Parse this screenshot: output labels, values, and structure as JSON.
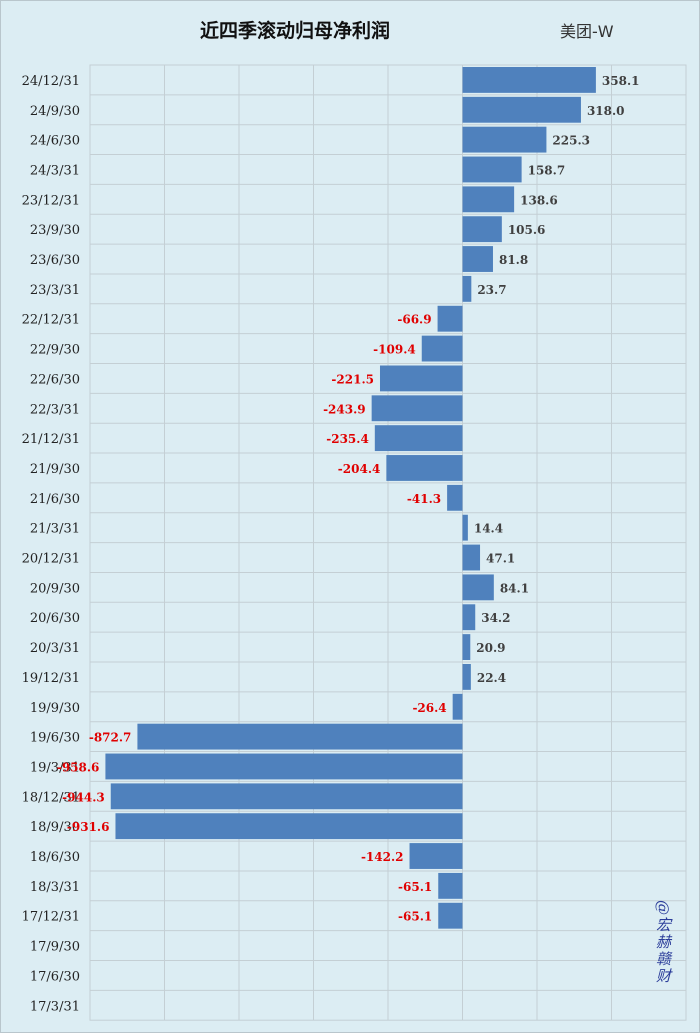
{
  "header": {
    "title": "近四季滚动归母净利润",
    "company": "美团-W"
  },
  "watermark": "@宏赫赣财",
  "chart_data": {
    "type": "bar",
    "orientation": "horizontal",
    "title": "近四季滚动归母净利润",
    "categories": [
      "24/12/31",
      "24/9/30",
      "24/6/30",
      "24/3/31",
      "23/12/31",
      "23/9/30",
      "23/6/30",
      "23/3/31",
      "22/12/31",
      "22/9/30",
      "22/6/30",
      "22/3/31",
      "21/12/31",
      "21/9/30",
      "21/6/30",
      "21/3/31",
      "20/12/31",
      "20/9/30",
      "20/6/30",
      "20/3/31",
      "19/12/31",
      "19/9/30",
      "19/6/30",
      "19/3/31",
      "18/12/31",
      "18/9/30",
      "18/6/30",
      "18/3/31",
      "17/12/31",
      "17/9/30",
      "17/6/30",
      "17/3/31"
    ],
    "values": [
      358.1,
      318.0,
      225.3,
      158.7,
      138.6,
      105.6,
      81.8,
      23.7,
      -66.9,
      -109.4,
      -221.5,
      -243.9,
      -235.4,
      -204.4,
      -41.3,
      14.4,
      47.1,
      84.1,
      34.2,
      20.9,
      22.4,
      -26.4,
      -872.7,
      -958.6,
      -944.3,
      -931.6,
      -142.2,
      -65.1,
      -65.1,
      null,
      null,
      null
    ],
    "labels": [
      "358.1",
      "318.0",
      "225.3",
      "158.7",
      "138.6",
      "105.6",
      "81.8",
      "23.7",
      "-66.9",
      "-109.4",
      "-221.5",
      "-243.9",
      "-235.4",
      "-204.4",
      "-41.3",
      "14.4",
      "47.1",
      "84.1",
      "34.2",
      "20.9",
      "22.4",
      "-26.4",
      "-872.7",
      "-958.6",
      "-944.3",
      "-931.6",
      "-142.2",
      "-65.1",
      "-65.1",
      "",
      "",
      ""
    ],
    "xlim": [
      -1000,
      600
    ],
    "grid_step": 200,
    "bar_color": "#4f81bd",
    "positive_label_color": "#404040",
    "negative_label_color": "#e00000",
    "grid": true
  }
}
